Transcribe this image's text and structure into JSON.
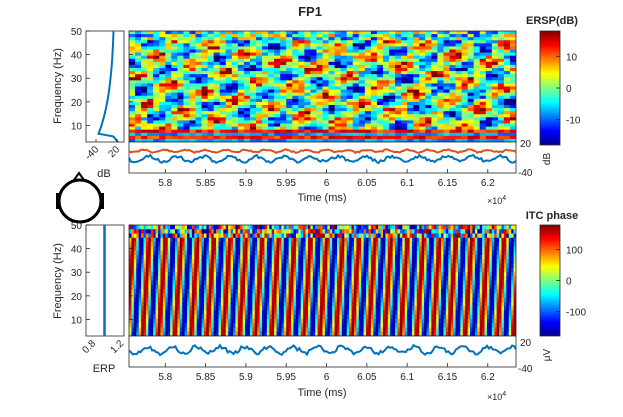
{
  "chart_data": [
    {
      "type": "heatmap",
      "name": "ERSP",
      "title": "FP1",
      "xlabel": "Time (ms)",
      "ylabel": "Frequency (Hz)",
      "x_ticks": [
        "5.8",
        "5.85",
        "5.9",
        "5.95",
        "6",
        "6.05",
        "6.1",
        "6.15",
        "6.2"
      ],
      "x_exponent": "×10^4",
      "xlim": [
        57550,
        62350
      ],
      "y_ticks": [
        "10",
        "20",
        "30",
        "40",
        "50"
      ],
      "ylim": [
        3,
        50
      ],
      "colorbar": {
        "title": "ERSP(dB)",
        "ticks": [
          "10",
          "0",
          "-10"
        ],
        "range": [
          -18,
          18
        ]
      },
      "left_panel": {
        "xlabel": "dB",
        "ticks": [
          "-40",
          "20"
        ],
        "desc": "mean power spectrum"
      },
      "bottom_panel": {
        "ylabel": "dB",
        "ticks": [
          "20",
          "-40"
        ]
      }
    },
    {
      "type": "heatmap",
      "name": "ITC",
      "xlabel": "Time (ms)",
      "ylabel": "Frequency (Hz)",
      "x_ticks": [
        "5.8",
        "5.85",
        "5.9",
        "5.95",
        "6",
        "6.05",
        "6.1",
        "6.15",
        "6.2"
      ],
      "x_exponent": "×10^4",
      "xlim": [
        57550,
        62350
      ],
      "y_ticks": [
        "10",
        "20",
        "30",
        "40",
        "50"
      ],
      "ylim": [
        3,
        50
      ],
      "colorbar": {
        "title": "ITC phase",
        "ticks": [
          "100",
          "0",
          "-100"
        ],
        "range": [
          -180,
          180
        ]
      },
      "left_panel": {
        "xlabel": "ERP",
        "ticks": [
          "0.8",
          "1.2"
        ]
      },
      "bottom_panel": {
        "ylabel": "μV",
        "ticks": [
          "20",
          "-40"
        ]
      }
    }
  ],
  "colors": {
    "line_blue": "#0072BD",
    "line_orange": "#D95319",
    "axis": "#262626"
  },
  "labels": {
    "x_exponent_base": "×10",
    "x_exponent_power": "4"
  }
}
